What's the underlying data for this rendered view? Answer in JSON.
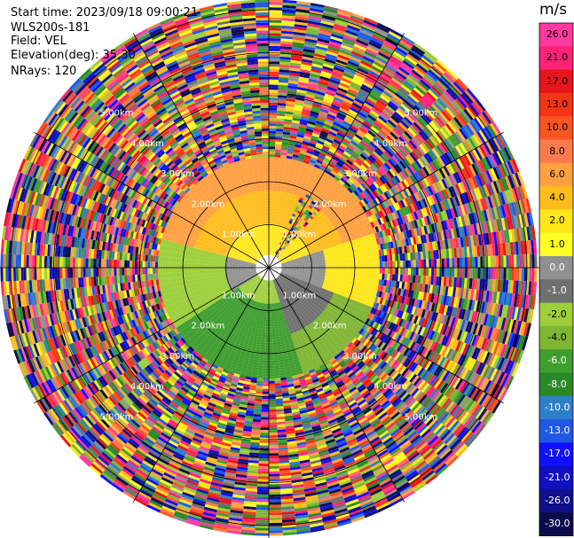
{
  "header": {
    "start_time": "Start time: 2023/09/18 09:00:21",
    "instrument": "WLS200s-181",
    "field": "Field: VEL",
    "elevation": "Elevation(deg): 35.30",
    "nrays": "NRays: 120"
  },
  "colorbar": {
    "unit": "m/s",
    "ticks": [
      "26.0",
      "21.0",
      "17.0",
      "13.0",
      "10.0",
      "8.0",
      "6.0",
      "4.0",
      "2.0",
      "1.0",
      "0.0",
      "-1.0",
      "-2.0",
      "-4.0",
      "-6.0",
      "-8.0",
      "-10.0",
      "-13.0",
      "-17.0",
      "-21.0",
      "-26.0",
      "-30.0"
    ],
    "colors": [
      "#ff3aa0",
      "#ff2277",
      "#e8141b",
      "#f53416",
      "#fb5522",
      "#fe7a4d",
      "#ffa041",
      "#ffbd1d",
      "#ffe619",
      "#ffff26",
      "#909090",
      "#6f6f6f",
      "#9ccf3a",
      "#80b533",
      "#3f9e2f",
      "#2a8828",
      "#2d7fc8",
      "#1f58e6",
      "#1010ff",
      "#1010c0",
      "#101088",
      "#0c0c4a"
    ]
  },
  "chart_data": {
    "type": "heatmap",
    "projection": "polar-ppi",
    "field": "VEL",
    "units": "m/s",
    "nrays": 120,
    "range_km": [
      0,
      6
    ],
    "range_ring_labels": [
      "1.00km",
      "2.00km",
      "3.00km",
      "4.00km",
      "5.00km"
    ],
    "value_levels": [
      26.0,
      21.0,
      17.0,
      13.0,
      10.0,
      8.0,
      6.0,
      4.0,
      2.0,
      1.0,
      0.0,
      -1.0,
      -2.0,
      -4.0,
      -6.0,
      -8.0,
      -10.0,
      -13.0,
      -17.0,
      -21.0,
      -26.0,
      -30.0
    ],
    "regions": [
      {
        "area": "north, 0-1 km",
        "velocity_ms": 2.0
      },
      {
        "area": "north, 1-2 km",
        "velocity_ms": 6.0
      },
      {
        "area": "northwest, 1-2.5 km",
        "velocity_ms": 4.0
      },
      {
        "area": "northeast, 1-2 km",
        "velocity_ms": 2.0
      },
      {
        "area": "west / east, 0.5-1.5 km",
        "velocity_ms": 0.0
      },
      {
        "area": "southwest, 0.5-2 km",
        "velocity_ms": -2.0
      },
      {
        "area": "south, 1-2.5 km",
        "velocity_ms": -6.0
      },
      {
        "area": "southeast, 0.5-1.5 km",
        "velocity_ms": -1.0
      },
      {
        "area": "beyond ~2.5 km",
        "velocity_ms": null,
        "note": "noise"
      }
    ]
  }
}
